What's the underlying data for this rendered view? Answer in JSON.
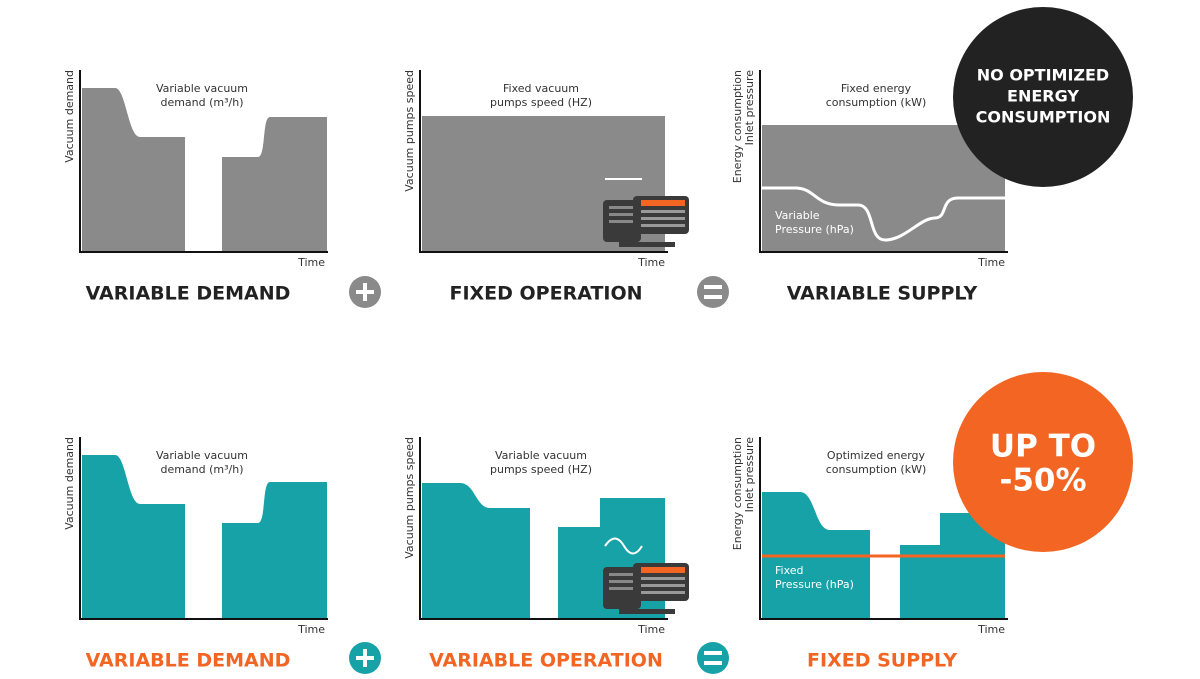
{
  "rows": [
    {
      "panels": [
        {
          "y_label": [
            "Vacuum demand"
          ],
          "label": [
            "Variable vacuum",
            "demand (m³/h)"
          ],
          "x_label": "Time",
          "caption": "VARIABLE DEMAND"
        },
        {
          "y_label": [
            "Vacuum pumps speed"
          ],
          "label": [
            "Fixed vacuum",
            "pumps speed (HZ)"
          ],
          "x_label": "Time",
          "caption": "FIXED OPERATION"
        },
        {
          "y_label": [
            "Energy consumption",
            "Inlet pressure"
          ],
          "label": [
            "Fixed energy",
            "consumption (kW)"
          ],
          "inner_label": [
            "Variable",
            "Pressure (hPa)"
          ],
          "x_label": "Time",
          "caption": "VARIABLE SUPPLY"
        }
      ],
      "badge": [
        "NO OPTIMIZED",
        "ENERGY",
        "CONSUMPTION"
      ]
    },
    {
      "panels": [
        {
          "y_label": [
            "Vacuum demand"
          ],
          "label": [
            "Variable vacuum",
            "demand (m³/h)"
          ],
          "x_label": "Time",
          "caption": "VARIABLE DEMAND"
        },
        {
          "y_label": [
            "Vacuum pumps speed"
          ],
          "label": [
            "Variable vacuum",
            "pumps speed (HZ)"
          ],
          "x_label": "Time",
          "caption": "VARIABLE OPERATION"
        },
        {
          "y_label": [
            "Energy consumption",
            "Inlet pressure"
          ],
          "label": [
            "Optimized energy",
            "consumption (kW)"
          ],
          "inner_label": [
            "Fixed",
            "Pressure (hPa)"
          ],
          "x_label": "Time",
          "caption": "FIXED SUPPLY"
        }
      ],
      "badge": [
        "UP TO",
        "-50%"
      ]
    }
  ]
}
